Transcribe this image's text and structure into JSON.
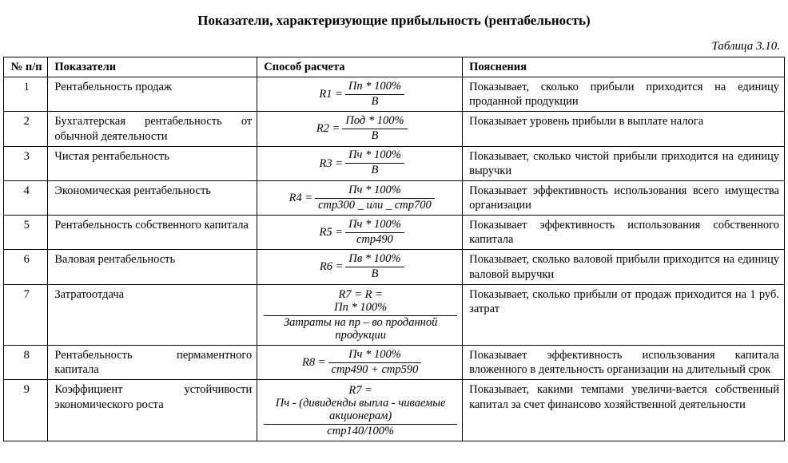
{
  "title": "Показатели, характеризующие прибыльность (рентабельность)",
  "caption": "Таблица 3.10.",
  "headers": {
    "num": "№ п/п",
    "indicator": "Показатели",
    "method": "Способ расчета",
    "expl": "Пояснения"
  },
  "rows": [
    {
      "n": "1",
      "indicator": "Рентабельность продаж",
      "formula": {
        "lhs": "R1 =",
        "num": "Пп * 100%",
        "den": "В"
      },
      "expl": "Показывает, сколько прибыли приходится на единицу проданной продукции"
    },
    {
      "n": "2",
      "indicator": "Бухгалтерская рентабельность от обычной деятельности",
      "formula": {
        "lhs": "R2 =",
        "num": "Под * 100%",
        "den": "В"
      },
      "expl": "Показывает уровень прибыли в выплате налога"
    },
    {
      "n": "3",
      "indicator": "Чистая рентабельность",
      "formula": {
        "lhs": "R3 =",
        "num": "Пч * 100%",
        "den": "В"
      },
      "expl": "Показывает, сколько чистой прибыли приходится на единицу выручки"
    },
    {
      "n": "4",
      "indicator": "Экономическая рентабельность",
      "formula": {
        "lhs": "R4 =",
        "num": "Пч * 100%",
        "den": "стр300 _ или _ стр700"
      },
      "expl": "Показывает эффективность использования всего имущества организации"
    },
    {
      "n": "5",
      "indicator": "Рентабельность собственного капитала",
      "formula": {
        "lhs": "R5 =",
        "num": "Пч * 100%",
        "den": "стр490"
      },
      "expl": "Показывает эффективность использования собственного капитала"
    },
    {
      "n": "6",
      "indicator": "Валовая рентабельность",
      "formula": {
        "lhs": "R6 =",
        "num": "Пв * 100%",
        "den": "В"
      },
      "expl": "Показывает, сколько валовой прибыли приходится на единицу валовой выручки"
    },
    {
      "n": "7",
      "indicator": "Затратоотдача",
      "formula": {
        "lhs": "R7 = R =",
        "num": "Пп * 100%",
        "den": "Затраты на пр – во проданной продукции"
      },
      "expl": "Показывает, сколько прибыли от продаж приходится на 1 руб. затрат"
    },
    {
      "n": "8",
      "indicator": "Рентабельность пермаментного капитала",
      "formula": {
        "lhs": "R8 =",
        "num": "Пч * 100%",
        "den": "стр490 + стр590"
      },
      "expl": "Показывает эффективность использования капитала вложенного в деятельность организации на длительный срок"
    },
    {
      "n": "9",
      "indicator": "Коэффициент устойчивости экономического роста",
      "formula": {
        "lhs": "R7 =",
        "num": "Пч - (дивиденды выпла - чиваемые акционерам)",
        "den": "стр140/100%"
      },
      "expl": "Показывает, какими темпами увеличи-вается собственный капитал за счет финансово хозяйственной деятельности"
    }
  ]
}
